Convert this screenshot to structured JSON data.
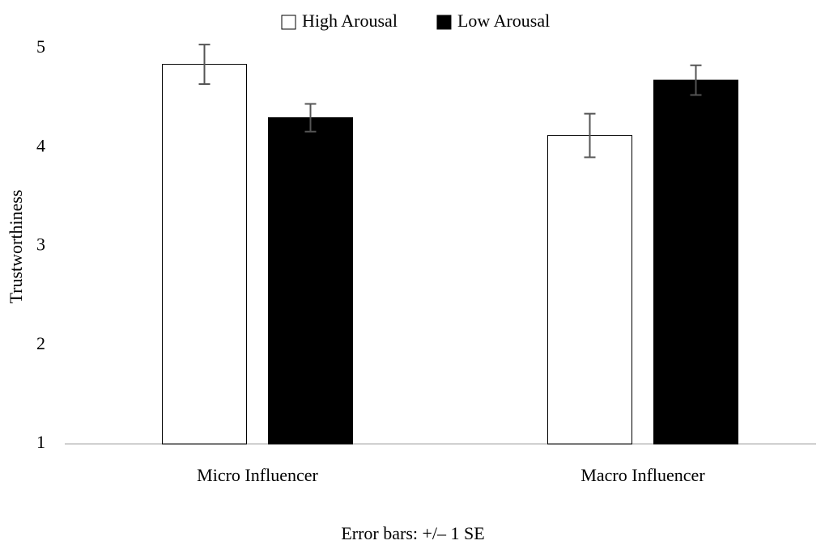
{
  "chart_data": {
    "type": "bar",
    "y_label": "Trustworthiness",
    "annotation": "Error bars: +/– 1 SE",
    "categories": [
      "Micro Influencer",
      "Macro Influencer"
    ],
    "series": [
      {
        "name": "High Arousal",
        "color": "#ffffff",
        "values": [
          4.84,
          4.12
        ],
        "errors": [
          0.2,
          0.22
        ]
      },
      {
        "name": "Low Arousal",
        "color": "#000000",
        "values": [
          4.3,
          4.68
        ],
        "errors": [
          0.14,
          0.15
        ]
      }
    ],
    "ylim": [
      1,
      5
    ],
    "yticks": [
      1,
      2,
      3,
      4,
      5
    ],
    "grid": false,
    "legend": "top"
  }
}
